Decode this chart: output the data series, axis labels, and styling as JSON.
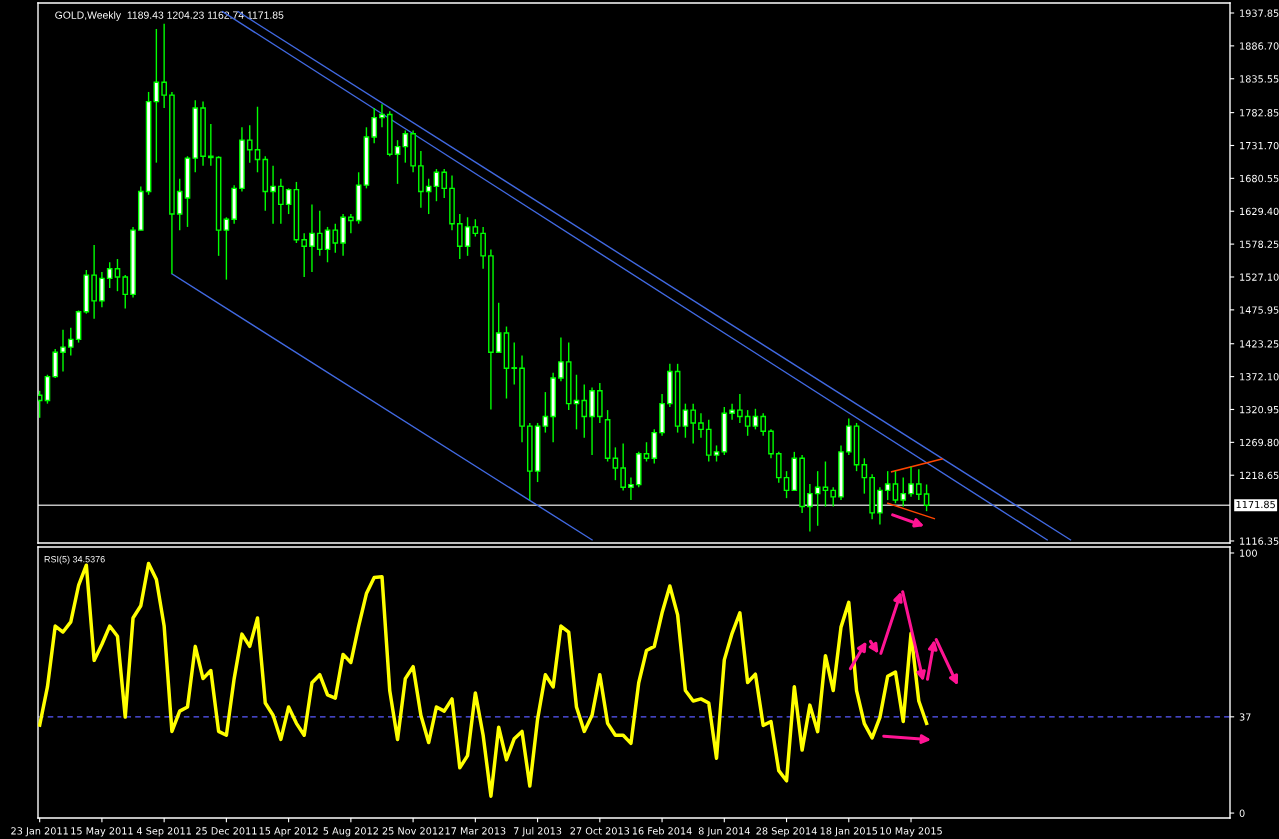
{
  "chart_data": [
    {
      "type": "candlestick",
      "title": "GOLD,Weekly  1189.43 1204.23 1162.74 1171.85",
      "color": "#00ff00",
      "x": [
        "2011-01-23",
        "2011-02-06",
        "2011-02-20",
        "2011-03-06",
        "2011-03-20",
        "2011-04-03",
        "2011-04-17",
        "2011-05-01",
        "2011-05-15",
        "2011-05-29",
        "2011-06-12",
        "2011-06-26",
        "2011-07-10",
        "2011-07-24",
        "2011-08-07",
        "2011-08-21",
        "2011-09-04",
        "2011-09-18",
        "2011-10-02",
        "2011-10-16",
        "2011-10-30",
        "2011-11-13",
        "2011-11-27",
        "2011-12-11",
        "2011-12-25",
        "2012-01-08",
        "2012-01-22",
        "2012-02-05",
        "2012-02-19",
        "2012-03-04",
        "2012-03-18",
        "2012-04-01",
        "2012-04-15",
        "2012-04-29",
        "2012-05-13",
        "2012-05-27",
        "2012-06-10",
        "2012-06-24",
        "2012-07-08",
        "2012-07-22",
        "2012-08-05",
        "2012-08-19",
        "2012-09-02",
        "2012-09-16",
        "2012-09-30",
        "2012-10-14",
        "2012-10-28",
        "2012-11-11",
        "2012-11-25",
        "2012-12-09",
        "2012-12-23",
        "2013-01-06",
        "2013-01-20",
        "2013-02-03",
        "2013-02-17",
        "2013-03-03",
        "2013-03-17",
        "2013-03-31",
        "2013-04-14",
        "2013-04-28",
        "2013-05-12",
        "2013-05-26",
        "2013-06-09",
        "2013-06-23",
        "2013-07-07",
        "2013-07-21",
        "2013-08-04",
        "2013-08-18",
        "2013-09-01",
        "2013-09-15",
        "2013-09-29",
        "2013-10-13",
        "2013-10-27",
        "2013-11-10",
        "2013-11-24",
        "2013-12-08",
        "2013-12-22",
        "2014-01-05",
        "2014-01-19",
        "2014-02-02",
        "2014-02-16",
        "2014-03-02",
        "2014-03-16",
        "2014-03-30",
        "2014-04-13",
        "2014-04-27",
        "2014-05-11",
        "2014-05-25",
        "2014-06-08",
        "2014-06-22",
        "2014-07-06",
        "2014-07-20",
        "2014-08-03",
        "2014-08-17",
        "2014-08-31",
        "2014-09-14",
        "2014-09-28",
        "2014-10-12",
        "2014-10-26",
        "2014-11-09",
        "2014-11-23",
        "2014-12-07",
        "2014-12-21",
        "2015-01-04",
        "2015-01-18",
        "2015-02-01",
        "2015-02-15",
        "2015-03-01",
        "2015-03-15",
        "2015-03-29",
        "2015-04-12",
        "2015-04-26",
        "2015-05-10",
        "2015-05-24",
        "2015-06-07"
      ],
      "ohlc": [
        [
          1343,
          1350,
          1308,
          1335
        ],
        [
          1335,
          1375,
          1330,
          1372
        ],
        [
          1372,
          1415,
          1370,
          1410
        ],
        [
          1410,
          1445,
          1380,
          1418
        ],
        [
          1418,
          1448,
          1405,
          1430
        ],
        [
          1430,
          1475,
          1425,
          1473
        ],
        [
          1473,
          1538,
          1470,
          1530
        ],
        [
          1530,
          1577,
          1462,
          1490
        ],
        [
          1490,
          1535,
          1480,
          1525
        ],
        [
          1525,
          1550,
          1510,
          1540
        ],
        [
          1540,
          1555,
          1505,
          1527
        ],
        [
          1527,
          1530,
          1478,
          1500
        ],
        [
          1500,
          1605,
          1495,
          1600
        ],
        [
          1600,
          1668,
          1600,
          1660
        ],
        [
          1660,
          1815,
          1655,
          1800
        ],
        [
          1800,
          1913,
          1705,
          1830
        ],
        [
          1830,
          1921,
          1790,
          1810
        ],
        [
          1810,
          1815,
          1532,
          1625
        ],
        [
          1625,
          1680,
          1600,
          1660
        ],
        [
          1650,
          1715,
          1605,
          1712
        ],
        [
          1712,
          1802,
          1690,
          1790
        ],
        [
          1790,
          1800,
          1700,
          1715
        ],
        [
          1715,
          1765,
          1700,
          1713
        ],
        [
          1713,
          1715,
          1560,
          1600
        ],
        [
          1600,
          1620,
          1523,
          1617
        ],
        [
          1617,
          1670,
          1610,
          1665
        ],
        [
          1665,
          1760,
          1660,
          1740
        ],
        [
          1740,
          1763,
          1705,
          1725
        ],
        [
          1725,
          1792,
          1690,
          1710
        ],
        [
          1710,
          1715,
          1630,
          1660
        ],
        [
          1660,
          1700,
          1610,
          1668
        ],
        [
          1668,
          1680,
          1610,
          1640
        ],
        [
          1640,
          1665,
          1625,
          1663
        ],
        [
          1663,
          1675,
          1580,
          1585
        ],
        [
          1585,
          1595,
          1527,
          1575
        ],
        [
          1575,
          1640,
          1535,
          1595
        ],
        [
          1595,
          1630,
          1560,
          1570
        ],
        [
          1570,
          1605,
          1550,
          1600
        ],
        [
          1600,
          1610,
          1565,
          1580
        ],
        [
          1580,
          1625,
          1560,
          1620
        ],
        [
          1620,
          1625,
          1595,
          1615
        ],
        [
          1615,
          1690,
          1610,
          1670
        ],
        [
          1670,
          1760,
          1665,
          1745
        ],
        [
          1745,
          1790,
          1735,
          1775
        ],
        [
          1775,
          1796,
          1760,
          1780
        ],
        [
          1780,
          1785,
          1715,
          1718
        ],
        [
          1718,
          1740,
          1672,
          1730
        ],
        [
          1730,
          1755,
          1705,
          1750
        ],
        [
          1750,
          1755,
          1690,
          1700
        ],
        [
          1700,
          1723,
          1635,
          1660
        ],
        [
          1660,
          1680,
          1625,
          1668
        ],
        [
          1668,
          1695,
          1645,
          1690
        ],
        [
          1690,
          1695,
          1650,
          1665
        ],
        [
          1665,
          1685,
          1600,
          1610
        ],
        [
          1610,
          1625,
          1555,
          1575
        ],
        [
          1575,
          1620,
          1560,
          1605
        ],
        [
          1605,
          1617,
          1590,
          1595
        ],
        [
          1595,
          1605,
          1540,
          1560
        ],
        [
          1560,
          1570,
          1321,
          1410
        ],
        [
          1410,
          1487,
          1410,
          1440
        ],
        [
          1440,
          1450,
          1338,
          1385
        ],
        [
          1385,
          1425,
          1360,
          1385
        ],
        [
          1385,
          1405,
          1270,
          1295
        ],
        [
          1295,
          1300,
          1180,
          1225
        ],
        [
          1225,
          1300,
          1208,
          1295
        ],
        [
          1295,
          1348,
          1285,
          1310
        ],
        [
          1310,
          1378,
          1270,
          1370
        ],
        [
          1370,
          1433,
          1365,
          1395
        ],
        [
          1395,
          1425,
          1320,
          1330
        ],
        [
          1330,
          1375,
          1290,
          1335
        ],
        [
          1335,
          1360,
          1277,
          1310
        ],
        [
          1310,
          1355,
          1250,
          1350
        ],
        [
          1350,
          1362,
          1300,
          1310
        ],
        [
          1305,
          1320,
          1240,
          1245
        ],
        [
          1245,
          1262,
          1211,
          1230
        ],
        [
          1230,
          1268,
          1195,
          1200
        ],
        [
          1200,
          1215,
          1180,
          1204
        ],
        [
          1204,
          1255,
          1200,
          1252
        ],
        [
          1252,
          1270,
          1240,
          1245
        ],
        [
          1245,
          1290,
          1237,
          1285
        ],
        [
          1285,
          1345,
          1280,
          1330
        ],
        [
          1330,
          1392,
          1325,
          1380
        ],
        [
          1380,
          1392,
          1285,
          1295
        ],
        [
          1295,
          1330,
          1277,
          1320
        ],
        [
          1320,
          1330,
          1268,
          1300
        ],
        [
          1300,
          1315,
          1277,
          1290
        ],
        [
          1290,
          1305,
          1240,
          1250
        ],
        [
          1250,
          1265,
          1240,
          1255
        ],
        [
          1255,
          1325,
          1250,
          1315
        ],
        [
          1315,
          1330,
          1305,
          1320
        ],
        [
          1320,
          1345,
          1300,
          1310
        ],
        [
          1310,
          1320,
          1280,
          1295
        ],
        [
          1295,
          1322,
          1290,
          1310
        ],
        [
          1310,
          1315,
          1280,
          1287
        ],
        [
          1287,
          1290,
          1245,
          1252
        ],
        [
          1252,
          1255,
          1207,
          1215
        ],
        [
          1215,
          1225,
          1183,
          1195
        ],
        [
          1195,
          1255,
          1195,
          1245
        ],
        [
          1245,
          1250,
          1160,
          1170
        ],
        [
          1170,
          1205,
          1131,
          1190
        ],
        [
          1190,
          1225,
          1140,
          1200
        ],
        [
          1200,
          1240,
          1170,
          1195
        ],
        [
          1195,
          1200,
          1170,
          1185
        ],
        [
          1185,
          1265,
          1180,
          1255
        ],
        [
          1255,
          1307,
          1250,
          1295
        ],
        [
          1295,
          1300,
          1225,
          1235
        ],
        [
          1235,
          1245,
          1190,
          1215
        ],
        [
          1215,
          1220,
          1150,
          1160
        ],
        [
          1160,
          1200,
          1142,
          1195
        ],
        [
          1195,
          1225,
          1180,
          1205
        ],
        [
          1205,
          1225,
          1175,
          1180
        ],
        [
          1180,
          1215,
          1170,
          1190
        ],
        [
          1190,
          1232,
          1185,
          1205
        ],
        [
          1205,
          1228,
          1180,
          1189
        ],
        [
          1189.43,
          1204.23,
          1162.74,
          1171.85
        ]
      ],
      "series": [
        {
          "type": "line",
          "color": "#4169e1",
          "x": [
            "2011-12-18",
            "2016-01-10"
          ],
          "values": [
            1940,
            1118
          ]
        },
        {
          "type": "line",
          "color": "#4169e1",
          "x": [
            "2012-01-15",
            "2016-02-21"
          ],
          "values": [
            1940,
            1118
          ]
        },
        {
          "type": "line",
          "color": "#4169e1",
          "x": [
            "2011-09-18",
            "2013-10-13"
          ],
          "values": [
            1532,
            1118
          ]
        },
        {
          "type": "line",
          "color": "#ff4500",
          "x": [
            "2015-04-05",
            "2015-07-05"
          ],
          "values": [
            1224,
            1244
          ]
        },
        {
          "type": "line",
          "color": "#ff4500",
          "x": [
            "2015-03-29",
            "2015-06-21"
          ],
          "values": [
            1175,
            1151
          ]
        }
      ],
      "ref_lines": [
        {
          "axis": "y",
          "value": 1171.85,
          "label": "1171.85",
          "color": "#c0c0c0"
        }
      ],
      "xlim": [
        "2011-01-20",
        "2016-12-04"
      ],
      "ylim": [
        1113.2,
        1953.4
      ],
      "yticks": [
        {
          "value": 1116.35,
          "label": "1116.35"
        },
        {
          "value": 1218.65,
          "label": "1218.65"
        },
        {
          "value": 1269.8,
          "label": "1269.80"
        },
        {
          "value": 1320.95,
          "label": "1320.95"
        },
        {
          "value": 1372.1,
          "label": "1372.10"
        },
        {
          "value": 1423.25,
          "label": "1423.25"
        },
        {
          "value": 1475.95,
          "label": "1475.95"
        },
        {
          "value": 1527.1,
          "label": "1527.10"
        },
        {
          "value": 1578.25,
          "label": "1578.25"
        },
        {
          "value": 1629.4,
          "label": "1629.40"
        },
        {
          "value": 1680.55,
          "label": "1680.55"
        },
        {
          "value": 1731.7,
          "label": "1731.70"
        },
        {
          "value": 1782.85,
          "label": "1782.85"
        },
        {
          "value": 1835.55,
          "label": "1835.55"
        },
        {
          "value": 1886.7,
          "label": "1886.70"
        },
        {
          "value": 1937.85,
          "label": "1937.85"
        }
      ],
      "tick_labels": "y"
    },
    {
      "type": "line",
      "title": "RSI(5) 34.5376",
      "x": [
        "2011-01-23",
        "2011-02-06",
        "2011-02-20",
        "2011-03-06",
        "2011-03-20",
        "2011-04-03",
        "2011-04-17",
        "2011-05-01",
        "2011-05-15",
        "2011-05-29",
        "2011-06-12",
        "2011-06-26",
        "2011-07-10",
        "2011-07-24",
        "2011-08-07",
        "2011-08-21",
        "2011-09-04",
        "2011-09-18",
        "2011-10-02",
        "2011-10-16",
        "2011-10-30",
        "2011-11-13",
        "2011-11-27",
        "2011-12-11",
        "2011-12-25",
        "2012-01-08",
        "2012-01-22",
        "2012-02-05",
        "2012-02-19",
        "2012-03-04",
        "2012-03-18",
        "2012-04-01",
        "2012-04-15",
        "2012-04-29",
        "2012-05-13",
        "2012-05-27",
        "2012-06-10",
        "2012-06-24",
        "2012-07-08",
        "2012-07-22",
        "2012-08-05",
        "2012-08-19",
        "2012-09-02",
        "2012-09-16",
        "2012-09-30",
        "2012-10-14",
        "2012-10-28",
        "2012-11-11",
        "2012-11-25",
        "2012-12-09",
        "2012-12-23",
        "2013-01-06",
        "2013-01-20",
        "2013-02-03",
        "2013-02-17",
        "2013-03-03",
        "2013-03-17",
        "2013-03-31",
        "2013-04-14",
        "2013-04-28",
        "2013-05-12",
        "2013-05-26",
        "2013-06-09",
        "2013-06-23",
        "2013-07-07",
        "2013-07-21",
        "2013-08-04",
        "2013-08-18",
        "2013-09-01",
        "2013-09-15",
        "2013-09-29",
        "2013-10-13",
        "2013-10-27",
        "2013-11-10",
        "2013-11-24",
        "2013-12-08",
        "2013-12-22",
        "2014-01-05",
        "2014-01-19",
        "2014-02-02",
        "2014-02-16",
        "2014-03-02",
        "2014-03-16",
        "2014-03-30",
        "2014-04-13",
        "2014-04-27",
        "2014-05-11",
        "2014-05-25",
        "2014-06-08",
        "2014-06-22",
        "2014-07-06",
        "2014-07-20",
        "2014-08-03",
        "2014-08-17",
        "2014-08-31",
        "2014-09-14",
        "2014-09-28",
        "2014-10-12",
        "2014-10-26",
        "2014-11-09",
        "2014-11-23",
        "2014-12-07",
        "2014-12-21",
        "2015-01-04",
        "2015-01-18",
        "2015-02-01",
        "2015-02-15",
        "2015-03-01",
        "2015-03-15",
        "2015-03-29",
        "2015-04-12",
        "2015-04-26",
        "2015-05-10",
        "2015-05-24",
        "2015-06-07"
      ],
      "series": [
        {
          "color": "#ffff00",
          "values": [
            33.8,
            48.5,
            71.9,
            69.6,
            73.5,
            87.5,
            95.3,
            58.7,
            64.9,
            71.9,
            68.0,
            36.9,
            75.0,
            79.7,
            96.0,
            89.8,
            71.9,
            31.4,
            39.2,
            40.8,
            64.1,
            51.7,
            54.8,
            31.4,
            29.9,
            51.7,
            68.8,
            64.1,
            75.0,
            42.3,
            37.6,
            28.3,
            40.8,
            34.5,
            29.9,
            50.1,
            53.2,
            45.4,
            44.2,
            61.0,
            57.9,
            71.9,
            84.4,
            90.6,
            90.9,
            47.0,
            28.3,
            51.7,
            56.3,
            37.6,
            27.1,
            40.8,
            39.2,
            43.9,
            17.4,
            22.1,
            46.2,
            29.9,
            6.5,
            33.0,
            20.5,
            28.6,
            31.4,
            10.4,
            36.1,
            53.2,
            48.5,
            71.9,
            69.6,
            40.8,
            31.4,
            37.6,
            53.2,
            34.5,
            29.9,
            29.9,
            26.8,
            50.1,
            62.5,
            64.1,
            77.0,
            87.3,
            76.2,
            47.1,
            43.1,
            43.9,
            42.3,
            21.1,
            58.9,
            69.1,
            77.0,
            50.2,
            53.4,
            33.7,
            35.2,
            16.3,
            12.4,
            48.6,
            24.2,
            41.5,
            31.3,
            60.5,
            47.1,
            71.5,
            81.0,
            47.1,
            34.4,
            28.9,
            36.8,
            52.6,
            54.2,
            35.2,
            69.1,
            43.1,
            34.5
          ]
        }
      ],
      "ref_lines": [
        {
          "axis": "y",
          "value": 37,
          "color": "#5a5aff",
          "line_style": "dashed"
        }
      ],
      "xlim": [
        "2011-01-20",
        "2016-12-04"
      ],
      "ylim": [
        -1.9,
        102.3
      ],
      "yticks": [
        0,
        37,
        100
      ],
      "xticks": [
        {
          "value": "2011-01-23",
          "label": "23 Jan 2011"
        },
        {
          "value": "2011-05-15",
          "label": "15 May 2011"
        },
        {
          "value": "2011-09-04",
          "label": "4 Sep 2011"
        },
        {
          "value": "2011-12-25",
          "label": "25 Dec 2011"
        },
        {
          "value": "2012-04-15",
          "label": "15 Apr 2012"
        },
        {
          "value": "2012-08-05",
          "label": "5 Aug 2012"
        },
        {
          "value": "2012-11-25",
          "label": "25 Nov 2012"
        },
        {
          "value": "2013-03-17",
          "label": "17 Mar 2013"
        },
        {
          "value": "2013-07-07",
          "label": "7 Jul 2013"
        },
        {
          "value": "2013-10-27",
          "label": "27 Oct 2013"
        },
        {
          "value": "2014-02-16",
          "label": "16 Feb 2014"
        },
        {
          "value": "2014-06-08",
          "label": "8 Jun 2014"
        },
        {
          "value": "2014-09-28",
          "label": "28 Sep 2014"
        },
        {
          "value": "2015-01-18",
          "label": "18 Jan 2015"
        },
        {
          "value": "2015-05-10",
          "label": "10 May 2015"
        }
      ]
    }
  ]
}
